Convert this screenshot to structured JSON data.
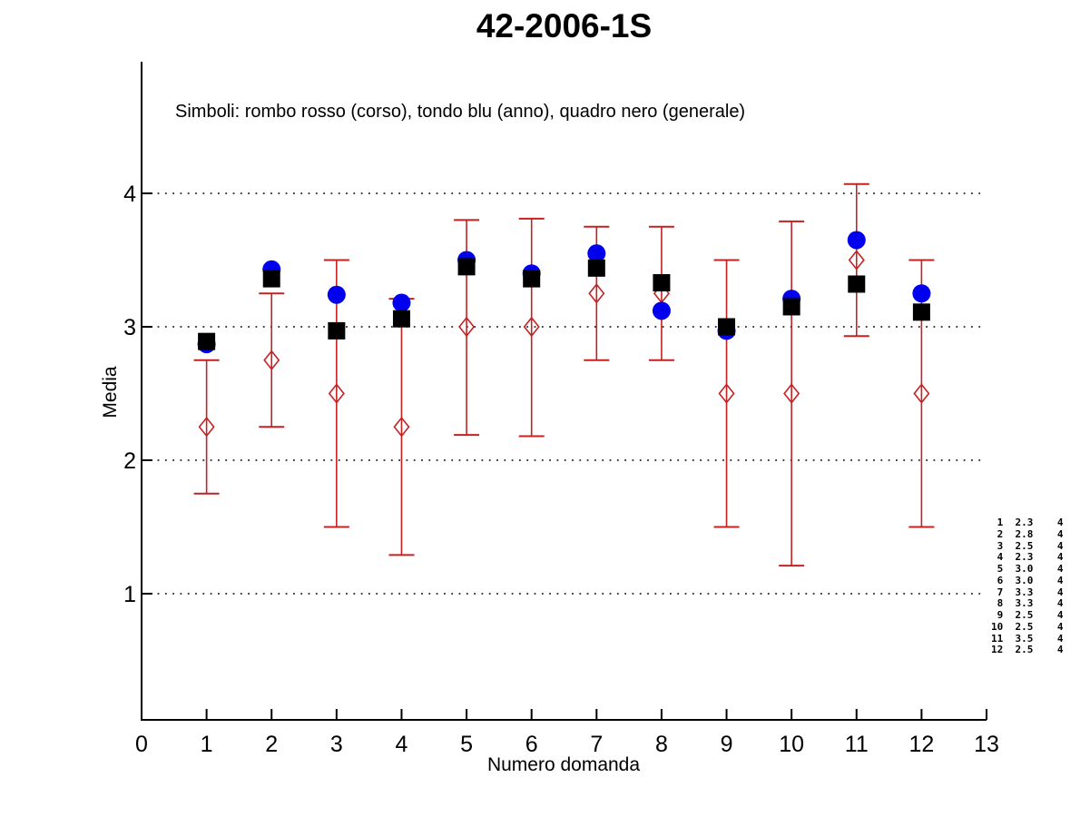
{
  "window": {
    "background": "#ffffff"
  },
  "chart_data": {
    "type": "scatter",
    "title": "42-2006-1S",
    "subtitle": "Simboli: rombo rosso (corso), tondo blu (anno), quadro nero (generale)",
    "xlabel": "Numero domanda",
    "ylabel": "Media",
    "xlim": [
      0,
      13
    ],
    "ylim": [
      0,
      5
    ],
    "x_ticks": [
      0,
      1,
      2,
      3,
      4,
      5,
      6,
      7,
      8,
      9,
      10,
      11,
      12,
      13
    ],
    "y_ticks": [
      1,
      2,
      3,
      4
    ],
    "grid": "horizontal dotted lines at each y tick",
    "legend_position": "text annotation inside plot, top-left",
    "x": [
      1,
      2,
      3,
      4,
      5,
      6,
      7,
      8,
      9,
      10,
      11,
      12
    ],
    "series": [
      {
        "name": "corso",
        "marker": "open-diamond",
        "color": "#c42222",
        "has_error_bars": true,
        "values": [
          2.25,
          2.75,
          2.5,
          2.25,
          3.0,
          3.0,
          3.25,
          3.25,
          2.5,
          2.5,
          3.5,
          2.5
        ],
        "error_low": [
          1.75,
          2.25,
          1.5,
          1.29,
          2.19,
          2.18,
          2.75,
          2.75,
          1.5,
          1.21,
          2.93,
          1.5
        ],
        "error_high": [
          2.75,
          3.25,
          3.5,
          3.21,
          3.8,
          3.81,
          3.75,
          3.75,
          3.5,
          3.79,
          4.07,
          3.5
        ]
      },
      {
        "name": "anno",
        "marker": "filled-circle",
        "color": "#0000ee",
        "has_error_bars": false,
        "values": [
          2.87,
          3.43,
          3.24,
          3.18,
          3.5,
          3.4,
          3.55,
          3.12,
          2.97,
          3.21,
          3.65,
          3.25
        ]
      },
      {
        "name": "generale",
        "marker": "filled-square",
        "color": "#000000",
        "has_error_bars": false,
        "values": [
          2.89,
          3.36,
          2.97,
          3.06,
          3.45,
          3.36,
          3.44,
          3.33,
          3.0,
          3.15,
          3.32,
          3.11
        ]
      }
    ],
    "side_table": {
      "rows": [
        [
          1,
          "2.3",
          "4"
        ],
        [
          2,
          "2.8",
          "4"
        ],
        [
          3,
          "2.5",
          "4"
        ],
        [
          4,
          "2.3",
          "4"
        ],
        [
          5,
          "3.0",
          "4"
        ],
        [
          6,
          "3.0",
          "4"
        ],
        [
          7,
          "3.3",
          "4"
        ],
        [
          8,
          "3.3",
          "4"
        ],
        [
          9,
          "2.5",
          "4"
        ],
        [
          10,
          "2.5",
          "4"
        ],
        [
          11,
          "3.5",
          "4"
        ],
        [
          12,
          "2.5",
          "4"
        ]
      ]
    },
    "colors": {
      "axis": "#000000",
      "grid": "#000000",
      "corso": "#c42222",
      "anno": "#0000ee",
      "generale": "#000000"
    }
  }
}
